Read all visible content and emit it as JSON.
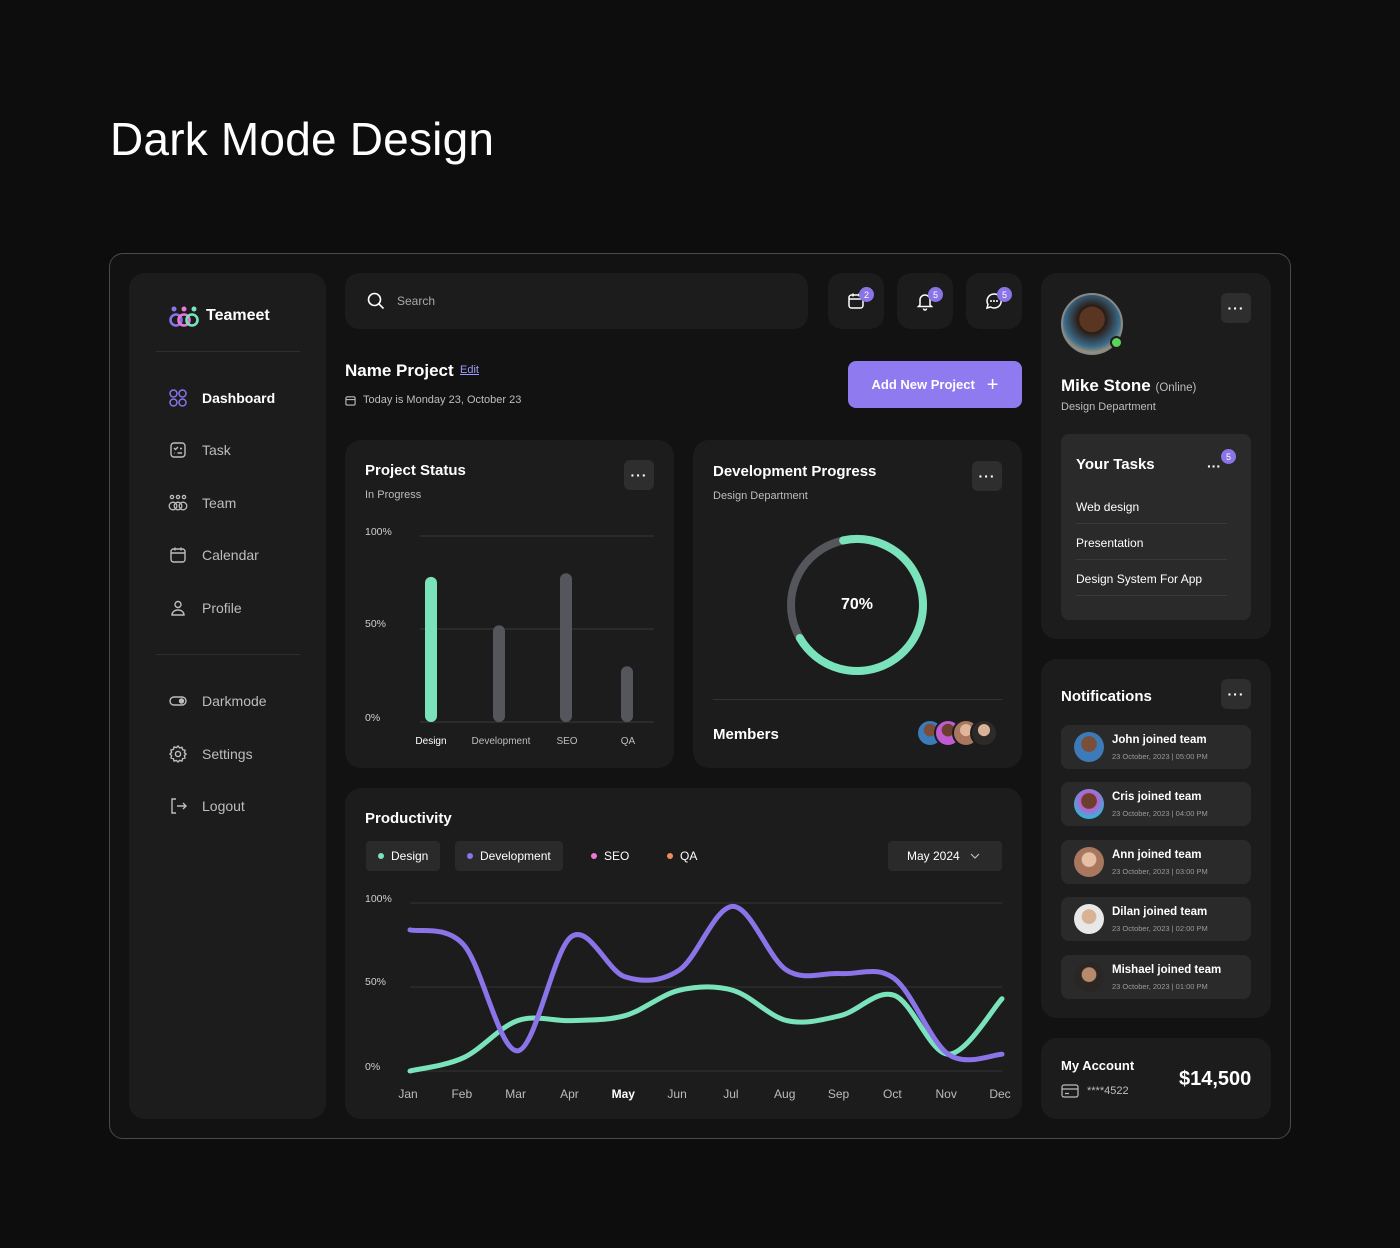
{
  "page_title": "Dark Mode Design",
  "app": {
    "name": "Teameet"
  },
  "sidebar": {
    "items": [
      {
        "label": "Dashboard"
      },
      {
        "label": "Task"
      },
      {
        "label": "Team"
      },
      {
        "label": "Calendar"
      },
      {
        "label": "Profile"
      }
    ],
    "bottom_items": [
      {
        "label": "Darkmode"
      },
      {
        "label": "Settings"
      },
      {
        "label": "Logout"
      }
    ]
  },
  "search": {
    "placeholder": "Search"
  },
  "header_badges": {
    "calendar": "2",
    "notifications": "5",
    "messages": "5"
  },
  "project": {
    "name": "Name Project",
    "edit_label": "Edit",
    "date_text": "Today is Monday 23, October 23",
    "add_button": "Add New Project"
  },
  "project_status": {
    "title": "Project Status",
    "subtitle": "In Progress",
    "chart_data": {
      "type": "bar",
      "categories": [
        "Design",
        "Development",
        "SEO",
        "QA"
      ],
      "values": [
        78,
        52,
        80,
        30
      ],
      "y_ticks": [
        "100%",
        "50%",
        "0%"
      ],
      "ylim": [
        0,
        100
      ],
      "colors": [
        "#7be3bb",
        "#55565c",
        "#55565c",
        "#55565c"
      ]
    }
  },
  "dev_progress": {
    "title": "Development Progress",
    "subtitle": "Design Department",
    "percent_label": "70%",
    "percent": 70,
    "members_label": "Members"
  },
  "productivity": {
    "title": "Productivity",
    "legend": [
      {
        "label": "Design",
        "color": "#7be3bb"
      },
      {
        "label": "Development",
        "color": "#8b74e8"
      },
      {
        "label": "SEO",
        "color": "#e879d6"
      },
      {
        "label": "QA",
        "color": "#ef8a5a"
      }
    ],
    "month_select": "May 2024",
    "chart_data": {
      "type": "line",
      "x": [
        "Jan",
        "Feb",
        "Mar",
        "Apr",
        "May",
        "Jun",
        "Jul",
        "Aug",
        "Sep",
        "Oct",
        "Nov",
        "Dec"
      ],
      "y_ticks": [
        "100%",
        "50%",
        "0%"
      ],
      "ylim": [
        0,
        100
      ],
      "series": [
        {
          "name": "Design",
          "color": "#7be3bb",
          "values": [
            0,
            8,
            30,
            30,
            33,
            48,
            48,
            30,
            33,
            45,
            10,
            43
          ]
        },
        {
          "name": "Development",
          "color": "#8b74e8",
          "values": [
            84,
            75,
            12,
            80,
            56,
            60,
            98,
            60,
            58,
            55,
            10,
            10
          ]
        }
      ]
    }
  },
  "profile": {
    "name": "Mike Stone",
    "status": "(Online)",
    "department": "Design Department"
  },
  "tasks": {
    "title": "Your Tasks",
    "badge": "5",
    "items": [
      "Web design",
      "Presentation",
      "Design System For App"
    ]
  },
  "notifications": {
    "title": "Notifications",
    "items": [
      {
        "title": "John joined team",
        "time": "23 October, 2023 | 05:00 PM"
      },
      {
        "title": "Cris joined team",
        "time": "23 October, 2023 | 04:00 PM"
      },
      {
        "title": "Ann joined team",
        "time": "23 October, 2023 | 03:00 PM"
      },
      {
        "title": "Dilan joined team",
        "time": "23 October, 2023 | 02:00 PM"
      },
      {
        "title": "Mishael joined team",
        "time": "23 October, 2023 | 01:00 PM"
      }
    ]
  },
  "account": {
    "title": "My Account",
    "card": "****4522",
    "balance": "$14,500"
  }
}
